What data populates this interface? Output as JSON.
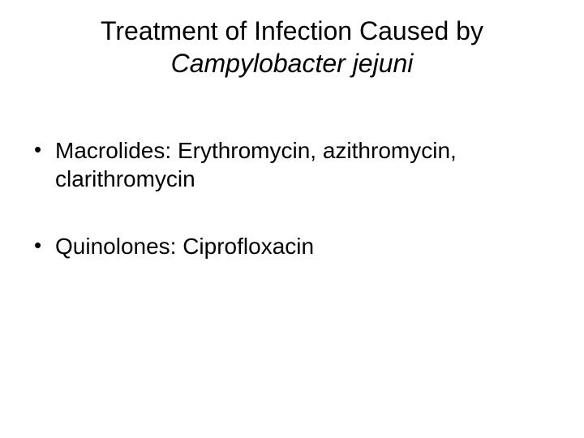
{
  "title": {
    "line1": "Treatment of Infection Caused by",
    "line2": "Campylobacter jejuni"
  },
  "bullets": [
    "Macrolides:  Erythromycin, azithromycin, clarithromycin",
    "Quinolones: Ciprofloxacin"
  ],
  "style": {
    "background_color": "#ffffff",
    "text_color": "#000000",
    "title_fontsize": 32,
    "body_fontsize": 28,
    "font_family": "Arial"
  }
}
